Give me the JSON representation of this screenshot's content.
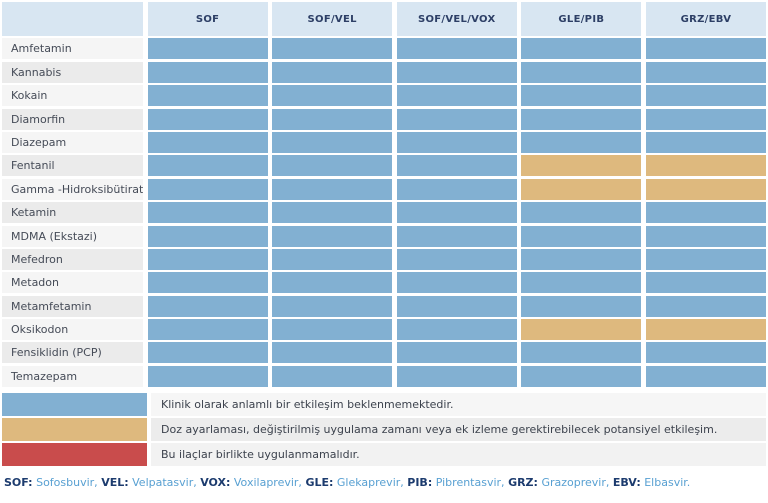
{
  "chart_data": {
    "type": "heatmap",
    "columns": [
      "SOF",
      "SOF/VEL",
      "SOF/VEL/VOX",
      "GLE/PIB",
      "GRZ/EBV"
    ],
    "rows": [
      {
        "label": "Amfetamin",
        "values": [
          0,
          0,
          0,
          0,
          0
        ]
      },
      {
        "label": "Kannabis",
        "values": [
          0,
          0,
          0,
          0,
          0
        ]
      },
      {
        "label": "Kokain",
        "values": [
          0,
          0,
          0,
          0,
          0
        ]
      },
      {
        "label": "Diamorfin",
        "values": [
          0,
          0,
          0,
          0,
          0
        ]
      },
      {
        "label": "Diazepam",
        "values": [
          0,
          0,
          0,
          0,
          0
        ]
      },
      {
        "label": "Fentanil",
        "values": [
          0,
          0,
          0,
          1,
          1
        ]
      },
      {
        "label": "Gamma -Hidroksibütirat",
        "values": [
          0,
          0,
          0,
          1,
          1
        ]
      },
      {
        "label": "Ketamin",
        "values": [
          0,
          0,
          0,
          0,
          0
        ]
      },
      {
        "label": "MDMA (Ekstazi)",
        "values": [
          0,
          0,
          0,
          0,
          0
        ]
      },
      {
        "label": "Mefedron",
        "values": [
          0,
          0,
          0,
          0,
          0
        ]
      },
      {
        "label": "Metadon",
        "values": [
          0,
          0,
          0,
          0,
          0
        ]
      },
      {
        "label": "Metamfetamin",
        "values": [
          0,
          0,
          0,
          0,
          0
        ]
      },
      {
        "label": "Oksikodon",
        "values": [
          0,
          0,
          0,
          1,
          1
        ]
      },
      {
        "label": "Fensiklidin (PCP)",
        "values": [
          0,
          0,
          0,
          0,
          0
        ]
      },
      {
        "label": "Temazepam",
        "values": [
          0,
          0,
          0,
          0,
          0
        ]
      }
    ],
    "value_meanings": {
      "0": "Klinik olarak anlamlı bir etkileşim beklenmemektedir.",
      "1": "Doz ayarlaması, değiştirilmiş uygulama zamanı veya ek izleme gerektirebilecek potansiyel etkileşim.",
      "2": "Bu ilaçlar birlikte uygulanmamalıdır."
    },
    "value_colors": {
      "0": "#82b0d2",
      "1": "#deb97e",
      "2": "#c94c4c"
    }
  },
  "legend": [
    {
      "key": "no-interaction",
      "color": "#82b0d2",
      "text": "Klinik olarak anlamlı bir etkileşim beklenmemektedir."
    },
    {
      "key": "potential-interaction",
      "color": "#deb97e",
      "text": "Doz ayarlaması, değiştirilmiş uygulama zamanı veya ek izleme gerektirebilecek potansiyel etkileşim."
    },
    {
      "key": "do-not-coadminister",
      "color": "#c94c4c",
      "text": "Bu ilaçlar birlikte uygulanmamalıdır."
    }
  ],
  "footnote": {
    "abbreviations": [
      {
        "abbr": "SOF:",
        "name": "Sofosbuvir,"
      },
      {
        "abbr": "VEL:",
        "name": "Velpatasvir,"
      },
      {
        "abbr": "VOX:",
        "name": "Voxilaprevir,"
      },
      {
        "abbr": "GLE:",
        "name": "Glekaprevir,"
      },
      {
        "abbr": "PIB:",
        "name": "Pibrentasvir,"
      },
      {
        "abbr": "GRZ:",
        "name": "Grazoprevir,"
      },
      {
        "abbr": "EBV:",
        "name": "Elbasvir."
      }
    ]
  },
  "style_colors": {
    "header_bg": "#d8e6f2",
    "header_text": "#2d3f66",
    "row_light": "#f5f5f5",
    "row_dark": "#ebebeb",
    "footnote_abbr": "#1c3b6e",
    "footnote_name": "#58a0d2"
  }
}
